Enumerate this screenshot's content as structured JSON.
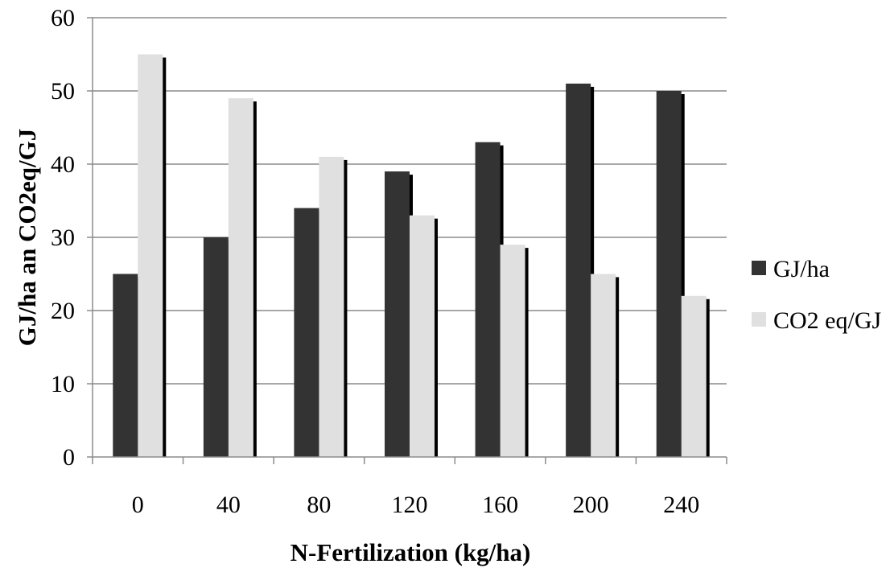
{
  "chart_data": {
    "type": "bar",
    "categories": [
      "0",
      "40",
      "80",
      "120",
      "160",
      "200",
      "240"
    ],
    "series": [
      {
        "name": "GJ/ha",
        "values": [
          25,
          30,
          34,
          39,
          43,
          51,
          50
        ],
        "color": "#333333"
      },
      {
        "name": "CO2 eq/GJ",
        "values": [
          55,
          49,
          41,
          33,
          29,
          25,
          22
        ],
        "color": "#e0e0e0"
      }
    ],
    "xlabel": "N-Fertilization (kg/ha)",
    "ylabel": "GJ/ha an CO2eq/GJ",
    "ylim": [
      0,
      60
    ],
    "yticks": [
      "0",
      "10",
      "20",
      "30",
      "40",
      "50",
      "60"
    ],
    "grid": true,
    "legend_position": "right"
  }
}
